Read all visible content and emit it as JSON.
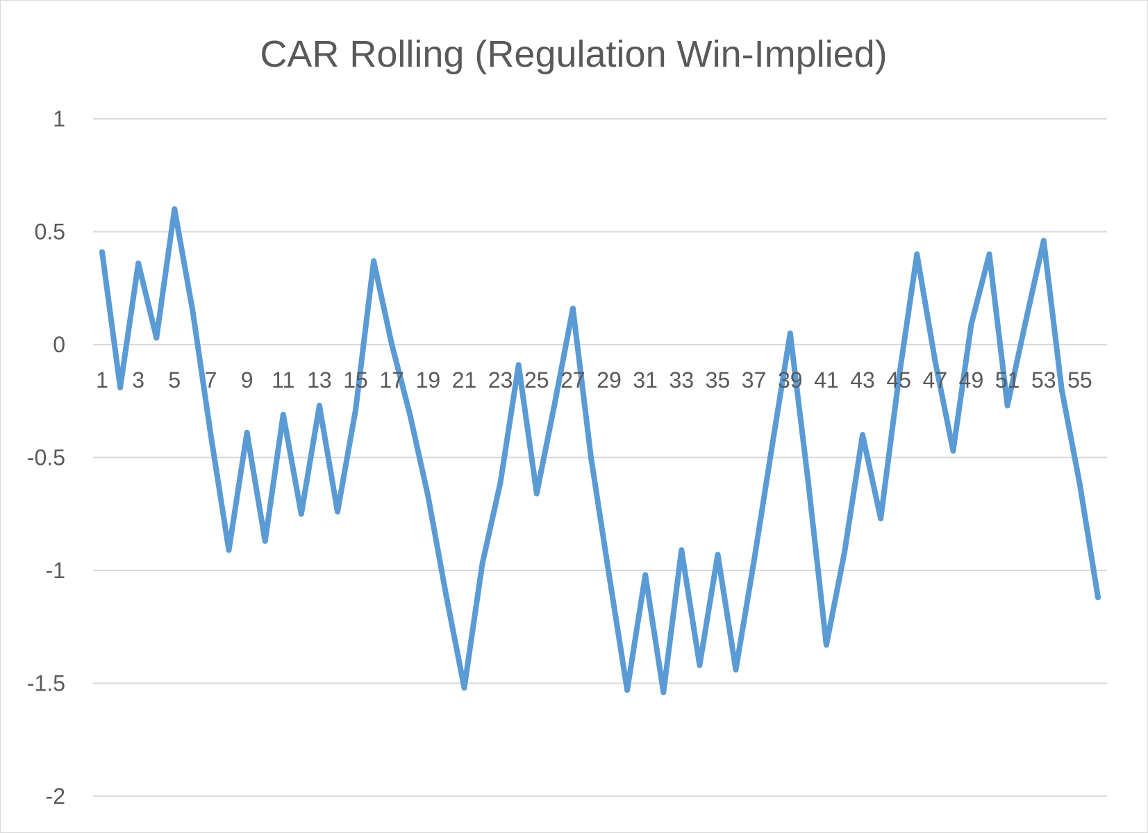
{
  "chart_data": {
    "type": "line",
    "title": "CAR Rolling (Regulation Win-Implied)",
    "xlabel": "",
    "ylabel": "",
    "ylim": [
      -2,
      1
    ],
    "yticks": [
      "1",
      "0.5",
      "0",
      "-0.5",
      "-1",
      "-1.5",
      "-2"
    ],
    "ytick_values": [
      1,
      0.5,
      0,
      -0.5,
      -1,
      -1.5,
      -2
    ],
    "x": [
      1,
      2,
      3,
      4,
      5,
      6,
      7,
      8,
      9,
      10,
      11,
      12,
      13,
      14,
      15,
      16,
      17,
      18,
      19,
      20,
      21,
      22,
      23,
      24,
      25,
      26,
      27,
      28,
      29,
      30,
      31,
      32,
      33,
      34,
      35,
      36,
      37,
      38,
      39,
      40,
      41,
      42,
      43,
      44,
      45,
      46,
      47,
      48,
      49,
      50,
      51,
      52,
      53,
      54,
      55,
      56
    ],
    "xtick_labels": [
      "1",
      "3",
      "5",
      "7",
      "9",
      "11",
      "13",
      "15",
      "17",
      "19",
      "21",
      "23",
      "25",
      "27",
      "29",
      "31",
      "33",
      "35",
      "37",
      "39",
      "41",
      "43",
      "45",
      "47",
      "49",
      "51",
      "53",
      "55"
    ],
    "grid": true,
    "legend": "none",
    "line_color": "#5b9bd5",
    "series": [
      {
        "values": [
          0.41,
          -0.19,
          0.36,
          0.03,
          0.6,
          0.15,
          -0.4,
          -0.91,
          -0.39,
          -0.87,
          -0.31,
          -0.75,
          -0.27,
          -0.74,
          -0.29,
          0.37,
          0.0,
          -0.31,
          -0.67,
          -1.11,
          -1.52,
          -0.97,
          -0.61,
          -0.09,
          -0.66,
          -0.26,
          0.16,
          -0.5,
          -1.02,
          -1.53,
          -1.02,
          -1.54,
          -0.91,
          -1.42,
          -0.93,
          -1.44,
          -0.96,
          -0.45,
          0.05,
          -0.61,
          -1.33,
          -0.92,
          -0.4,
          -0.77,
          -0.15,
          0.4,
          -0.07,
          -0.47,
          0.09,
          0.4,
          -0.27,
          0.1,
          0.46,
          -0.2,
          -0.62,
          -1.12
        ]
      }
    ]
  }
}
